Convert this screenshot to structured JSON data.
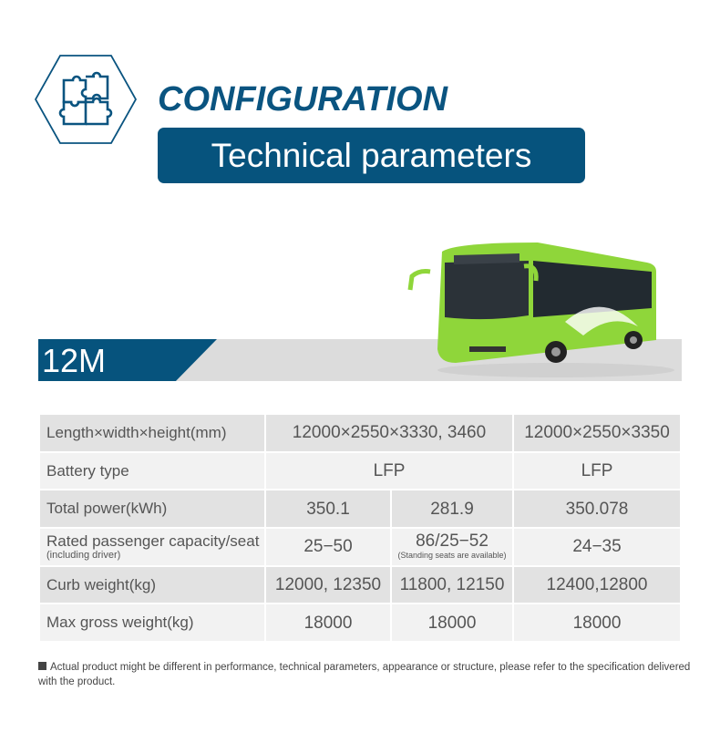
{
  "header": {
    "icon": "puzzle-icon",
    "title": "CONFIGURATION",
    "subtitle": "Technical parameters"
  },
  "model": {
    "label": "12M",
    "image": "green-electric-bus"
  },
  "colors": {
    "brand": "#06537d",
    "bus": "#8fd63a"
  },
  "table": {
    "rows": [
      {
        "label": "Length×width×height(mm)",
        "a": "12000×2550×3330, 3460",
        "c": "12000×2550×3350"
      },
      {
        "label": "Battery type",
        "a": "LFP",
        "c": "LFP"
      },
      {
        "label": "Total power(kWh)",
        "a": "350.1",
        "b": "281.9",
        "c": "350.078"
      },
      {
        "label": "Rated passenger capacity/seat",
        "sublabel": "(including driver)",
        "a": "25−50",
        "b": "86/25−52",
        "bnote": "(Standing seats are available)",
        "c": "24−35"
      },
      {
        "label": "Curb weight(kg)",
        "a": "12000, 12350",
        "b": "11800, 12150",
        "c": "12400,12800"
      },
      {
        "label": "Max gross weight(kg)",
        "a": "18000",
        "b": "18000",
        "c": "18000"
      }
    ]
  },
  "note": "Actual product might be different in performance, technical parameters, appearance or structure, please refer to the specification delivered with the product."
}
